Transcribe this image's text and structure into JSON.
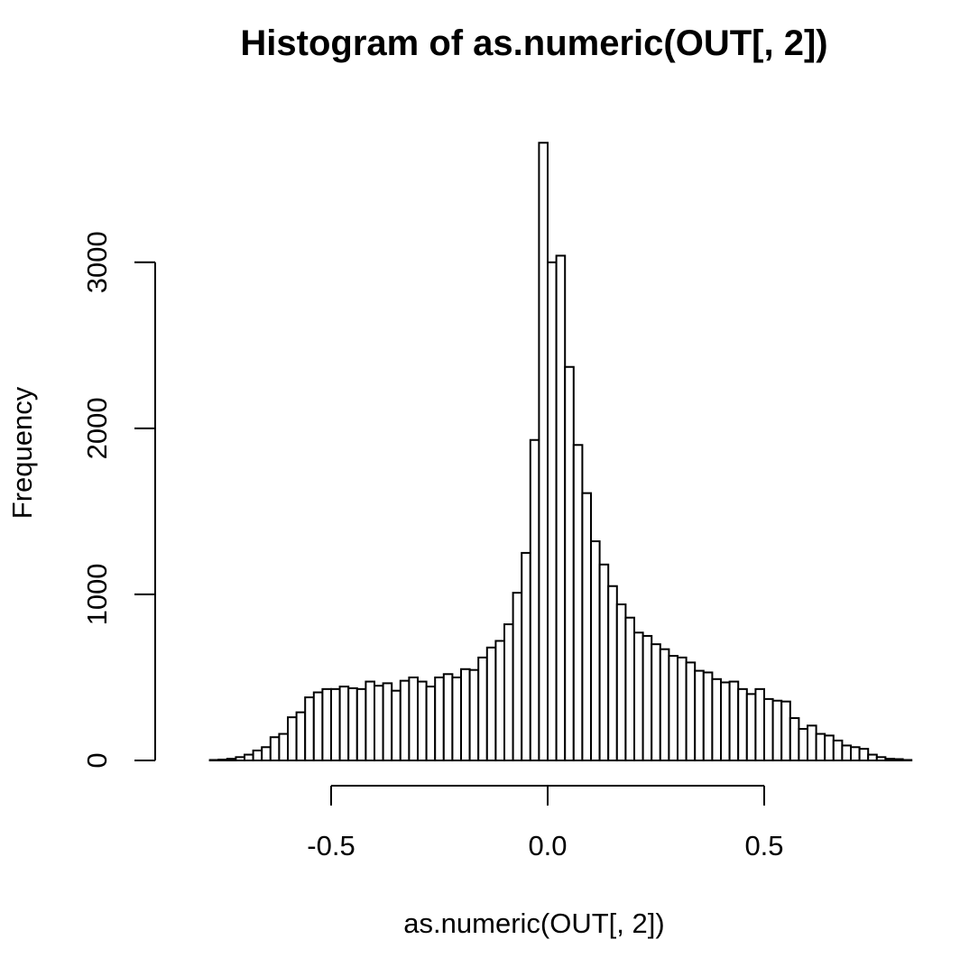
{
  "chart_data": {
    "type": "bar",
    "subtype": "histogram",
    "title": "Histogram of as.numeric(OUT[, 2])",
    "xlabel": "as.numeric(OUT[, 2])",
    "ylabel": "Frequency",
    "xlim": [
      -0.83,
      0.78
    ],
    "ylim": [
      0,
      3720
    ],
    "bin_width": 0.02,
    "bin_start": -0.84,
    "x_ticks": [
      -0.5,
      0.0,
      0.5
    ],
    "x_tick_labels": [
      "-0.5",
      "0.0",
      "0.5"
    ],
    "y_ticks": [
      0,
      1000,
      2000,
      3000
    ],
    "y_tick_labels": [
      "0",
      "1000",
      "2000",
      "3000"
    ],
    "counts": [
      0,
      0,
      0,
      3,
      5,
      10,
      20,
      35,
      60,
      80,
      140,
      160,
      260,
      290,
      380,
      410,
      430,
      430,
      445,
      435,
      430,
      475,
      450,
      465,
      420,
      480,
      500,
      475,
      445,
      500,
      520,
      500,
      550,
      545,
      620,
      680,
      720,
      820,
      1010,
      1250,
      1930,
      3720,
      3000,
      3040,
      2370,
      1900,
      1610,
      1320,
      1180,
      1050,
      940,
      860,
      770,
      750,
      700,
      670,
      630,
      620,
      590,
      540,
      530,
      490,
      470,
      475,
      430,
      400,
      430,
      370,
      360,
      355,
      255,
      190,
      210,
      160,
      150,
      120,
      90,
      80,
      70,
      35,
      20,
      10,
      8,
      3
    ]
  }
}
